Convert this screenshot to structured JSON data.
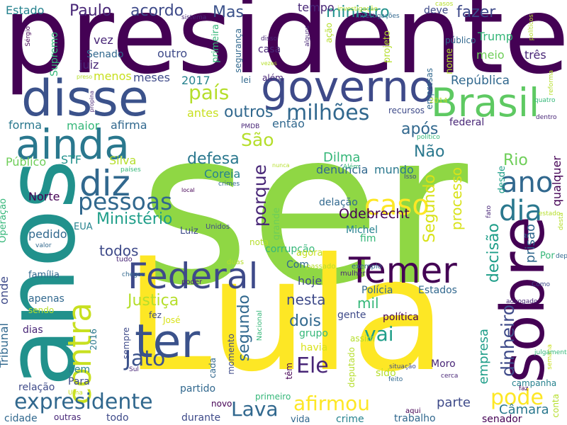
{
  "palette": {
    "dark_purple": "#440154",
    "indigo": "#482677",
    "violet_blue": "#3e4a89",
    "steel_blue": "#31688e",
    "teal": "#26828e",
    "sea_green": "#1f9e89",
    "green": "#35b779",
    "light_green": "#6ece58",
    "lime": "#b5de2b",
    "yellow": "#fde725"
  },
  "words": [
    {
      "text": "presidente",
      "color": "#440154"
    },
    {
      "text": "ser",
      "color": "#8fd744"
    },
    {
      "text": "Lula",
      "color": "#fde725"
    },
    {
      "text": "anos",
      "color": "#21918c"
    },
    {
      "text": "disse",
      "color": "#3b528b"
    },
    {
      "text": "governo",
      "color": "#3e4a89"
    },
    {
      "text": "sobre",
      "color": "#440154"
    },
    {
      "text": "ainda",
      "color": "#2a788e"
    },
    {
      "text": "Brasil",
      "color": "#5ec962"
    },
    {
      "text": "ter",
      "color": "#3b528b"
    },
    {
      "text": "Federal",
      "color": "#3e4a89"
    },
    {
      "text": "Temer",
      "color": "#440154"
    },
    {
      "text": "diz",
      "color": "#31688e"
    },
    {
      "text": "contra",
      "color": "#c8e020"
    },
    {
      "text": "ano",
      "color": "#31688e"
    },
    {
      "text": "dia",
      "color": "#2a788e"
    },
    {
      "text": "pessoas",
      "color": "#31688e"
    },
    {
      "text": "caso",
      "color": "#fde725"
    },
    {
      "text": "país",
      "color": "#b5de2b"
    },
    {
      "text": "milhões",
      "color": "#31688e"
    },
    {
      "text": "Jato",
      "color": "#3b528b"
    },
    {
      "text": "Lava",
      "color": "#31688e"
    },
    {
      "text": "expresidente",
      "color": "#31688e"
    },
    {
      "text": "afirmou",
      "color": "#fde725"
    },
    {
      "text": "pode",
      "color": "#fde725"
    },
    {
      "text": "Ele",
      "color": "#482677"
    },
    {
      "text": "vai",
      "color": "#1f9e89"
    },
    {
      "text": "dinheiro",
      "color": "#3e4a89"
    },
    {
      "text": "Paulo",
      "color": "#482677"
    },
    {
      "text": "acordo",
      "color": "#3e4a89"
    },
    {
      "text": "Mas",
      "color": "#3b528b"
    },
    {
      "text": "ministro",
      "color": "#21918c"
    },
    {
      "text": "fazer",
      "color": "#3e4a89"
    },
    {
      "text": "São",
      "color": "#b5de2b"
    },
    {
      "text": "outros",
      "color": "#31688e"
    },
    {
      "text": "após",
      "color": "#31688e"
    },
    {
      "text": "defesa",
      "color": "#2a788e"
    },
    {
      "text": "porque",
      "color": "#482677"
    },
    {
      "text": "Não",
      "color": "#2a788e"
    },
    {
      "text": "Rio",
      "color": "#6ece58"
    },
    {
      "text": "Segundo",
      "color": "#d8e219"
    },
    {
      "text": "República",
      "color": "#31688e"
    },
    {
      "text": "Ministério",
      "color": "#1f9e89"
    },
    {
      "text": "Odebrecht",
      "color": "#440154"
    },
    {
      "text": "processo",
      "color": "#d8e219"
    },
    {
      "text": "decisão",
      "color": "#1f9e89"
    },
    {
      "text": "prisão",
      "color": "#31688e"
    },
    {
      "text": "Justiça",
      "color": "#b5de2b"
    },
    {
      "text": "segundo",
      "color": "#31688e"
    },
    {
      "text": "nesta",
      "color": "#3e4a89"
    },
    {
      "text": "mil",
      "color": "#35b779"
    },
    {
      "text": "dois",
      "color": "#31688e"
    },
    {
      "text": "todos",
      "color": "#3e4a89"
    },
    {
      "text": "empresa",
      "color": "#1f9e89"
    },
    {
      "text": "parte",
      "color": "#3e4a89"
    },
    {
      "text": "Câmara",
      "color": "#2a788e"
    },
    {
      "text": "qualquer",
      "color": "#440154"
    },
    {
      "text": "Dilma",
      "color": "#35b779"
    },
    {
      "text": "denúncia",
      "color": "#31688e"
    },
    {
      "text": "Estado",
      "color": "#26828e"
    },
    {
      "text": "tempo",
      "color": "#482677"
    },
    {
      "text": "deve",
      "color": "#3e4a89"
    },
    {
      "text": "Trump",
      "color": "#35b779"
    },
    {
      "text": "meio",
      "color": "#6ece58"
    },
    {
      "text": "três",
      "color": "#482677"
    },
    {
      "text": "juiz",
      "color": "#482677"
    },
    {
      "text": "vez",
      "color": "#482677"
    },
    {
      "text": "outro",
      "color": "#3e4a89"
    },
    {
      "text": "Senado",
      "color": "#31688e"
    },
    {
      "text": "casa",
      "color": "#482677"
    },
    {
      "text": "menos",
      "color": "#c8e020"
    },
    {
      "text": "meses",
      "color": "#3e4a89"
    },
    {
      "text": "2017",
      "color": "#26828e"
    },
    {
      "text": "antes",
      "color": "#c8e020"
    },
    {
      "text": "forma",
      "color": "#2a788e"
    },
    {
      "text": "maior",
      "color": "#35b779"
    },
    {
      "text": "afirma",
      "color": "#31688e"
    },
    {
      "text": "então",
      "color": "#31688e"
    },
    {
      "text": "STF",
      "color": "#21918c"
    },
    {
      "text": "Silva",
      "color": "#b5de2b"
    },
    {
      "text": "Público",
      "color": "#6ece58"
    },
    {
      "text": "Coreia",
      "color": "#26828e"
    },
    {
      "text": "Norte",
      "color": "#440154"
    },
    {
      "text": "EUA",
      "color": "#26828e"
    },
    {
      "text": "pedido",
      "color": "#31688e"
    },
    {
      "text": "Luiz",
      "color": "#3e4a89"
    },
    {
      "text": "delação",
      "color": "#31688e"
    },
    {
      "text": "Michel",
      "color": "#26828e"
    },
    {
      "text": "fim",
      "color": "#35b779"
    },
    {
      "text": "mundo",
      "color": "#2a788e"
    },
    {
      "text": "desde",
      "color": "#1f9e89"
    },
    {
      "text": "grande",
      "color": "#6ece58"
    },
    {
      "text": "federal",
      "color": "#482677"
    },
    {
      "text": "corrupção",
      "color": "#35b779"
    },
    {
      "text": "agora",
      "color": "#c8e020"
    },
    {
      "text": "nota",
      "color": "#b5de2b"
    },
    {
      "text": "hoje",
      "color": "#3e4a89"
    },
    {
      "text": "Com",
      "color": "#31688e"
    },
    {
      "text": "onde",
      "color": "#3e4a89"
    },
    {
      "text": "família",
      "color": "#31688e"
    },
    {
      "text": "apenas",
      "color": "#31688e"
    },
    {
      "text": "sendo",
      "color": "#b5de2b"
    },
    {
      "text": "Polícia",
      "color": "#31688e"
    },
    {
      "text": "Estados",
      "color": "#31688e"
    },
    {
      "text": "fez",
      "color": "#3e4a89"
    },
    {
      "text": "José",
      "color": "#d8e219"
    },
    {
      "text": "gente",
      "color": "#3e4a89"
    },
    {
      "text": "política",
      "color": "#440154"
    },
    {
      "text": "grupo",
      "color": "#35b779"
    },
    {
      "text": "havia",
      "color": "#d8e219"
    },
    {
      "text": "assim",
      "color": "#b5de2b"
    },
    {
      "text": "dias",
      "color": "#482677"
    },
    {
      "text": "sempre",
      "color": "#3e4a89"
    },
    {
      "text": "Tribunal",
      "color": "#31688e"
    },
    {
      "text": "bem",
      "color": "#26828e"
    },
    {
      "text": "relação",
      "color": "#3e4a89"
    },
    {
      "text": "Para",
      "color": "#3e4a89"
    },
    {
      "text": "momento",
      "color": "#3e4a89"
    },
    {
      "text": "sido",
      "color": "#b5de2b"
    },
    {
      "text": "Moro",
      "color": "#482677"
    },
    {
      "text": "cada",
      "color": "#31688e"
    },
    {
      "text": "deputado",
      "color": "#b5de2b"
    },
    {
      "text": "partido",
      "color": "#31688e"
    },
    {
      "text": "todo",
      "color": "#3e4a89"
    },
    {
      "text": "durante",
      "color": "#3e4a89"
    },
    {
      "text": "crime",
      "color": "#26828e"
    },
    {
      "text": "trabalho",
      "color": "#31688e"
    },
    {
      "text": "senador",
      "color": "#440154"
    },
    {
      "text": "vida",
      "color": "#31688e"
    },
    {
      "text": "cidade",
      "color": "#31688e"
    },
    {
      "text": "outras",
      "color": "#482677"
    },
    {
      "text": "primeiro",
      "color": "#35b779"
    },
    {
      "text": "novo",
      "color": "#440154"
    },
    {
      "text": "têm",
      "color": "#440154"
    },
    {
      "text": "conta",
      "color": "#b5de2b"
    },
    {
      "text": "Operação",
      "color": "#35b779"
    },
    {
      "text": "Supremo",
      "color": "#35b779"
    },
    {
      "text": "primeira",
      "color": "#35b779"
    },
    {
      "text": "segurança",
      "color": "#31688e"
    },
    {
      "text": "lei",
      "color": "#31688e"
    },
    {
      "text": "além",
      "color": "#482677"
    },
    {
      "text": "ação",
      "color": "#b5de2b"
    },
    {
      "text": "projeto",
      "color": "#b5de2b"
    },
    {
      "text": "empresas",
      "color": "#31688e"
    },
    {
      "text": "público",
      "color": "#31688e"
    },
    {
      "text": "nome",
      "color": "#b5de2b"
    },
    {
      "text": "2016",
      "color": "#2a788e"
    },
    {
      "text": "Nacional",
      "color": "#35b779"
    },
    {
      "text": "campanha",
      "color": "#26828e"
    },
    {
      "text": "recursos",
      "color": "#3e4a89"
    },
    {
      "text": "Por",
      "color": "#35b779"
    },
    {
      "text": "tudo",
      "color": "#482677"
    },
    {
      "text": "duas",
      "color": "#b5de2b"
    },
    {
      "text": "passado",
      "color": "#b5de2b"
    },
    {
      "text": "mulher",
      "color": "#482677"
    },
    {
      "text": "exemplo",
      "color": "#31688e"
    },
    {
      "text": "valor",
      "color": "#31688e"
    },
    {
      "text": "poder",
      "color": "#482677"
    },
    {
      "text": "2014",
      "color": "#b5de2b"
    },
    {
      "text": "crimes",
      "color": "#31688e"
    },
    {
      "text": "Unidos",
      "color": "#3e4a89"
    },
    {
      "text": "cerca",
      "color": "#482677"
    },
    {
      "text": "Sul",
      "color": "#482677"
    },
    {
      "text": "Uma",
      "color": "#c8e020"
    },
    {
      "text": "feito",
      "color": "#31688e"
    },
    {
      "text": "situação",
      "color": "#3e4a89"
    },
    {
      "text": "aqui",
      "color": "#440154"
    },
    {
      "text": "faz",
      "color": "#440154"
    },
    {
      "text": "preso",
      "color": "#b5de2b"
    },
    {
      "text": "propina",
      "color": "#482677"
    },
    {
      "text": "PMDB",
      "color": "#482677"
    },
    {
      "text": "Além",
      "color": "#35b779"
    },
    {
      "text": "político",
      "color": "#35b779"
    },
    {
      "text": "Isso",
      "color": "#3e4a89"
    },
    {
      "text": "nunca",
      "color": "#b5de2b"
    },
    {
      "text": "países",
      "color": "#35b779"
    },
    {
      "text": "local",
      "color": "#440154"
    },
    {
      "text": "estado",
      "color": "#b5de2b"
    },
    {
      "text": "fato",
      "color": "#482677"
    },
    {
      "text": "Como",
      "color": "#3e4a89"
    },
    {
      "text": "advogado",
      "color": "#482677"
    },
    {
      "text": "depoimento",
      "color": "#31688e"
    },
    {
      "text": "dentro",
      "color": "#482677"
    },
    {
      "text": "quatro",
      "color": "#35b779"
    },
    {
      "text": "reforma",
      "color": "#b5de2b"
    },
    {
      "text": "desta",
      "color": "#b5de2b"
    },
    {
      "text": "semana",
      "color": "#c8e020"
    },
    {
      "text": "julgamento",
      "color": "#35b779"
    },
    {
      "text": "políticos",
      "color": "#b5de2b"
    },
    {
      "text": "casos",
      "color": "#b5de2b"
    },
    {
      "text": "investigação",
      "color": "#b5de2b"
    },
    {
      "text": "investigações",
      "color": "#31688e"
    },
    {
      "text": "disso",
      "color": "#482677"
    },
    {
      "text": "alguns",
      "color": "#482677"
    },
    {
      "text": "Sérgio",
      "color": "#440154"
    },
    {
      "text": "sistema",
      "color": "#482677"
    },
    {
      "text": "chegou",
      "color": "#31688e"
    },
    {
      "text": "vezes",
      "color": "#b5de2b"
    },
    {
      "text": "todas",
      "color": "#b5de2b"
    },
    {
      "text": "pública",
      "color": "#b5de2b"
    }
  ]
}
